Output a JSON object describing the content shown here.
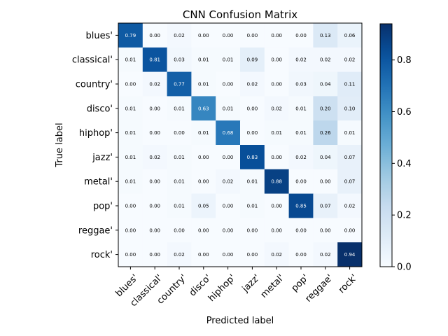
{
  "chart_data": {
    "type": "heatmap",
    "title": "CNN Confusion Matrix",
    "xlabel": "Predicted label",
    "ylabel": "True label",
    "x_categories": [
      "blues'",
      "classical'",
      "country'",
      "disco'",
      "hiphop'",
      "jazz'",
      "metal'",
      "pop'",
      "reggae'",
      "rock'"
    ],
    "y_categories": [
      "blues'",
      "classical'",
      "country'",
      "disco'",
      "hiphop'",
      "jazz'",
      "metal'",
      "pop'",
      "reggae'",
      "rock'"
    ],
    "values": [
      [
        0.79,
        0.0,
        0.02,
        0.0,
        0.0,
        0.0,
        0.0,
        0.0,
        0.13,
        0.06
      ],
      [
        0.01,
        0.81,
        0.03,
        0.01,
        0.01,
        0.09,
        0.0,
        0.02,
        0.02,
        0.02
      ],
      [
        0.0,
        0.02,
        0.77,
        0.01,
        0.0,
        0.02,
        0.0,
        0.03,
        0.04,
        0.11
      ],
      [
        0.01,
        0.0,
        0.01,
        0.63,
        0.01,
        0.0,
        0.02,
        0.01,
        0.2,
        0.1
      ],
      [
        0.01,
        0.0,
        0.0,
        0.01,
        0.68,
        0.0,
        0.01,
        0.01,
        0.26,
        0.01
      ],
      [
        0.01,
        0.02,
        0.01,
        0.0,
        0.0,
        0.83,
        0.0,
        0.02,
        0.04,
        0.07
      ],
      [
        0.01,
        0.0,
        0.01,
        0.0,
        0.02,
        0.01,
        0.88,
        0.0,
        0.0,
        0.07
      ],
      [
        0.0,
        0.0,
        0.01,
        0.05,
        0.0,
        0.01,
        0.0,
        0.85,
        0.07,
        0.02
      ],
      [
        0.0,
        0.0,
        0.0,
        0.0,
        0.0,
        0.0,
        0.0,
        0.0,
        0.0,
        0.0
      ],
      [
        0.0,
        0.0,
        0.02,
        0.0,
        0.0,
        0.0,
        0.02,
        0.0,
        0.02,
        0.94
      ]
    ],
    "value_format_decimals": 2,
    "colormap": "Blues",
    "colorbar": {
      "vmin": 0.0,
      "vmax": 0.94,
      "ticks": [
        0.0,
        0.2,
        0.4,
        0.6,
        0.8
      ],
      "tick_labels": [
        "0.0",
        "0.2",
        "0.4",
        "0.6",
        "0.8"
      ]
    },
    "colors": {
      "low": "#f7fbff",
      "high": "#08306b",
      "text_on_dark": "#ffffff",
      "text_on_light": "#000000"
    },
    "grid": false,
    "x_tick_rotation_deg": 45
  }
}
